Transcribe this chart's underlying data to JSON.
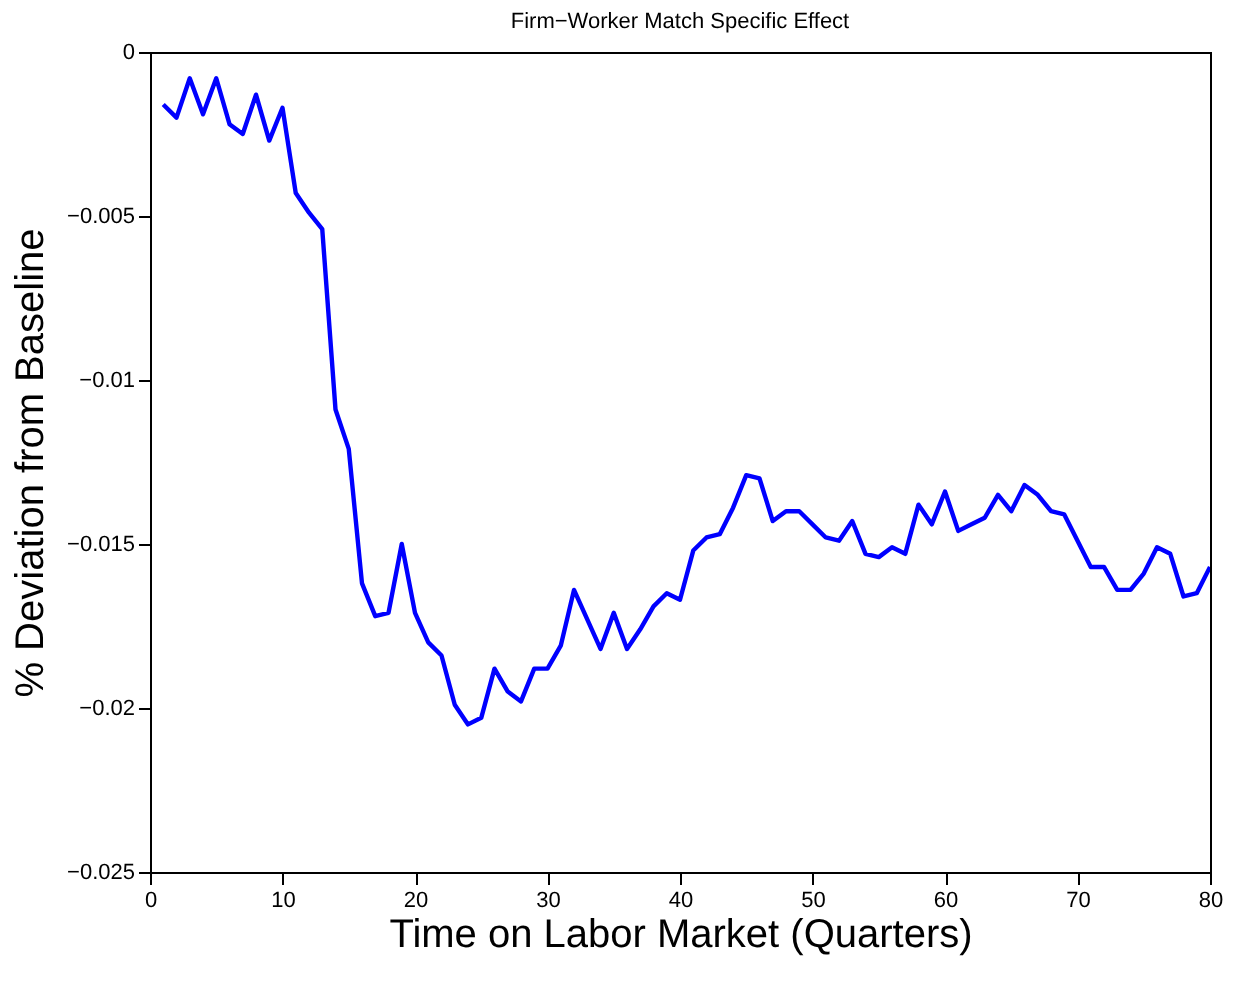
{
  "chart_data": {
    "type": "line",
    "title": "Firm−Worker Match Specific Effect",
    "xlabel": "Time on Labor Market (Quarters)",
    "ylabel": "% Deviation from Baseline",
    "x": [
      1,
      2,
      3,
      4,
      5,
      6,
      7,
      8,
      9,
      10,
      11,
      12,
      13,
      14,
      15,
      16,
      17,
      18,
      19,
      20,
      21,
      22,
      23,
      24,
      25,
      26,
      27,
      28,
      29,
      30,
      31,
      32,
      33,
      34,
      35,
      36,
      37,
      38,
      39,
      40,
      41,
      42,
      43,
      44,
      45,
      46,
      47,
      48,
      49,
      50,
      51,
      52,
      53,
      54,
      55,
      56,
      57,
      58,
      59,
      60,
      61,
      62,
      63,
      64,
      65,
      66,
      67,
      68,
      69,
      70,
      71,
      72,
      73,
      74,
      75,
      76,
      77,
      78,
      79,
      80
    ],
    "series": [
      {
        "color": "#0000ff",
        "values": [
          -0.0016,
          -0.002,
          -0.0008,
          -0.0019,
          -0.0008,
          -0.0022,
          -0.0025,
          -0.0013,
          -0.0027,
          -0.0017,
          -0.0043,
          -0.0049,
          -0.0054,
          -0.0109,
          -0.0121,
          -0.0162,
          -0.0172,
          -0.0171,
          -0.015,
          -0.0171,
          -0.018,
          -0.0184,
          -0.0199,
          -0.0205,
          -0.0203,
          -0.0188,
          -0.0195,
          -0.0198,
          -0.0188,
          -0.0188,
          -0.0181,
          -0.0164,
          -0.0173,
          -0.0182,
          -0.0171,
          -0.0182,
          -0.0176,
          -0.0169,
          -0.0165,
          -0.0167,
          -0.0152,
          -0.0148,
          -0.0147,
          -0.0139,
          -0.0129,
          -0.013,
          -0.0143,
          -0.014,
          -0.014,
          -0.0144,
          -0.0148,
          -0.0149,
          -0.0143,
          -0.0153,
          -0.0154,
          -0.0151,
          -0.0153,
          -0.0138,
          -0.0144,
          -0.0134,
          -0.0146,
          -0.0144,
          -0.0142,
          -0.0135,
          -0.014,
          -0.0132,
          -0.0135,
          -0.014,
          -0.0141,
          -0.0149,
          -0.0157,
          -0.0157,
          -0.0164,
          -0.0164,
          -0.0159,
          -0.0151,
          -0.0153,
          -0.0166,
          -0.0165,
          -0.0157
        ]
      }
    ],
    "xlim": [
      0,
      80
    ],
    "xticks": [
      0,
      10,
      20,
      30,
      40,
      50,
      60,
      70,
      80
    ],
    "ylim": [
      -0.025,
      0
    ],
    "yticks": [
      -0.025,
      -0.02,
      -0.015,
      -0.01,
      -0.005,
      0
    ],
    "grid": false,
    "legend": false,
    "marker": "none",
    "line_style": "solid"
  }
}
